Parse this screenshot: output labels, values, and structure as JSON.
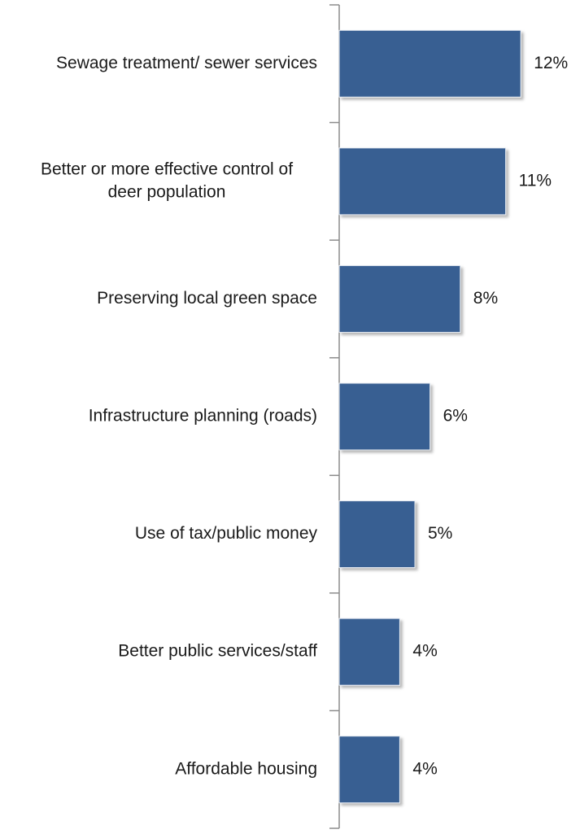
{
  "chart_data": {
    "type": "bar",
    "orientation": "horizontal",
    "categories": [
      "Sewage treatment/ sewer services",
      "Better or more effective control of deer population",
      "Preserving local green space",
      "Infrastructure planning (roads)",
      "Use of tax/public money",
      "Better public services/staff",
      "Affordable housing"
    ],
    "category_lines": [
      [
        "Sewage treatment/ sewer services"
      ],
      [
        "Better or more effective control of",
        "deer population"
      ],
      [
        "Preserving local green space"
      ],
      [
        "Infrastructure planning (roads)"
      ],
      [
        "Use of tax/public money"
      ],
      [
        "Better public services/staff"
      ],
      [
        "Affordable housing"
      ]
    ],
    "values": [
      12,
      11,
      8,
      6,
      5,
      4,
      4
    ],
    "value_labels": [
      "12%",
      "11%",
      "8%",
      "6%",
      "5%",
      "4%",
      "4%"
    ],
    "title": "",
    "xlabel": "",
    "ylabel": "",
    "xlim": [
      0,
      12
    ],
    "grid": false,
    "legend": "none",
    "bar_color": "#375f92"
  }
}
